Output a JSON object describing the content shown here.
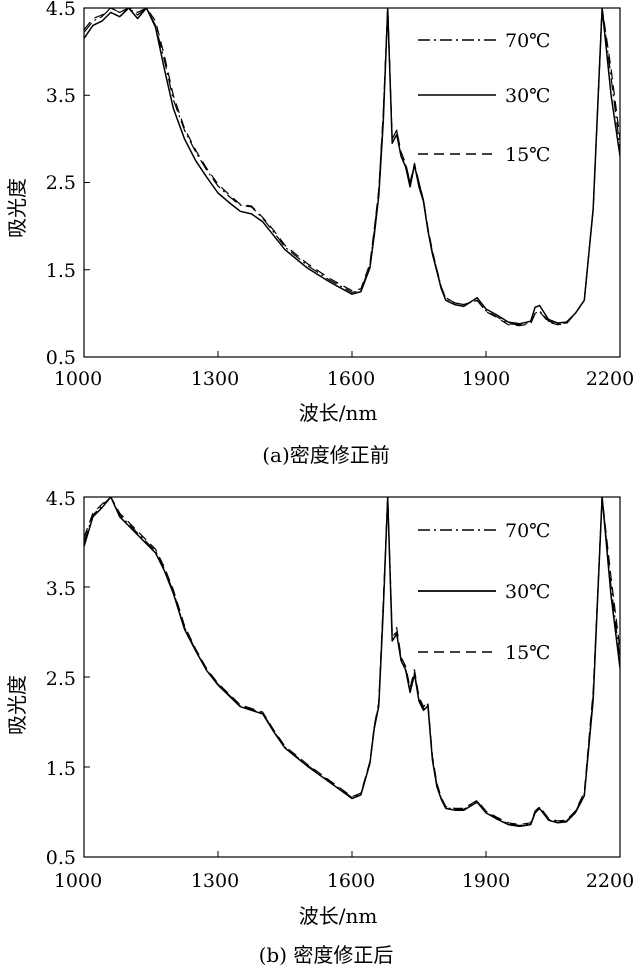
{
  "chart_data": [
    {
      "type": "line",
      "caption": "(a)密度修正前",
      "xlabel": "波长/nm",
      "ylabel": "吸光度",
      "xlim": [
        1000,
        2200
      ],
      "ylim": [
        0.5,
        4.5
      ],
      "xticks": [
        "1000",
        "1300",
        "1600",
        "1900",
        "2200"
      ],
      "yticks": [
        "0.5",
        "1.5",
        "2.5",
        "3.5",
        "4.5"
      ],
      "xticks_values": [
        1000,
        1300,
        1600,
        1900,
        2200
      ],
      "yticks_values": [
        0.5,
        1.5,
        2.5,
        3.5,
        4.5
      ],
      "legend_position": "top-right",
      "series": [
        {
          "name": "70℃",
          "style": "dashdot",
          "x": [
            1000,
            1020,
            1040,
            1060,
            1080,
            1100,
            1120,
            1140,
            1160,
            1180,
            1200,
            1225,
            1250,
            1275,
            1300,
            1325,
            1350,
            1375,
            1400,
            1425,
            1450,
            1500,
            1550,
            1600,
            1620,
            1640,
            1650,
            1660,
            1670,
            1680,
            1690,
            1700,
            1710,
            1720,
            1730,
            1740,
            1750,
            1760,
            1770,
            1780,
            1790,
            1800,
            1810,
            1830,
            1850,
            1880,
            1900,
            1925,
            1950,
            1975,
            2000,
            2010,
            2020,
            2040,
            2060,
            2080,
            2100,
            2120,
            2140,
            2160,
            2180,
            2200
          ],
          "y": [
            4.22,
            4.35,
            4.4,
            4.5,
            4.45,
            4.5,
            4.42,
            4.5,
            4.3,
            3.9,
            3.45,
            3.1,
            2.85,
            2.64,
            2.46,
            2.34,
            2.24,
            2.22,
            2.09,
            1.93,
            1.76,
            1.55,
            1.38,
            1.24,
            1.26,
            1.55,
            1.95,
            2.4,
            3.3,
            4.5,
            3.0,
            3.1,
            2.8,
            2.7,
            2.5,
            2.7,
            2.5,
            2.3,
            1.97,
            1.7,
            1.5,
            1.3,
            1.17,
            1.12,
            1.1,
            1.15,
            1.03,
            0.96,
            0.88,
            0.87,
            0.89,
            1.0,
            1.03,
            0.91,
            0.88,
            0.89,
            1.0,
            1.15,
            2.2,
            4.5,
            3.7,
            2.9
          ]
        },
        {
          "name": "30℃",
          "style": "solid",
          "x": [
            1000,
            1020,
            1040,
            1060,
            1080,
            1100,
            1120,
            1140,
            1160,
            1180,
            1200,
            1225,
            1250,
            1275,
            1300,
            1325,
            1350,
            1375,
            1400,
            1425,
            1450,
            1500,
            1550,
            1600,
            1620,
            1640,
            1650,
            1660,
            1670,
            1680,
            1690,
            1700,
            1710,
            1720,
            1730,
            1740,
            1750,
            1760,
            1770,
            1780,
            1790,
            1800,
            1810,
            1830,
            1850,
            1880,
            1900,
            1925,
            1950,
            1975,
            2000,
            2010,
            2020,
            2040,
            2060,
            2080,
            2100,
            2120,
            2140,
            2160,
            2180,
            2200
          ],
          "y": [
            4.15,
            4.3,
            4.35,
            4.45,
            4.4,
            4.5,
            4.38,
            4.5,
            4.28,
            3.8,
            3.35,
            3.0,
            2.75,
            2.56,
            2.38,
            2.27,
            2.17,
            2.14,
            2.05,
            1.89,
            1.73,
            1.52,
            1.36,
            1.22,
            1.25,
            1.52,
            1.9,
            2.35,
            3.2,
            4.5,
            2.95,
            3.05,
            2.8,
            2.68,
            2.45,
            2.7,
            2.45,
            2.28,
            1.95,
            1.68,
            1.48,
            1.28,
            1.15,
            1.1,
            1.08,
            1.18,
            1.05,
            0.98,
            0.9,
            0.88,
            0.91,
            1.07,
            1.09,
            0.93,
            0.89,
            0.9,
            1.0,
            1.15,
            2.2,
            4.5,
            3.5,
            2.8
          ]
        },
        {
          "name": "15℃",
          "style": "dashed",
          "x": [
            1000,
            1020,
            1040,
            1060,
            1080,
            1100,
            1120,
            1140,
            1160,
            1180,
            1200,
            1225,
            1250,
            1275,
            1300,
            1325,
            1350,
            1375,
            1400,
            1425,
            1450,
            1500,
            1550,
            1600,
            1620,
            1640,
            1650,
            1660,
            1670,
            1680,
            1690,
            1700,
            1710,
            1720,
            1730,
            1740,
            1750,
            1760,
            1770,
            1780,
            1790,
            1800,
            1810,
            1830,
            1850,
            1880,
            1900,
            1925,
            1950,
            1975,
            2000,
            2010,
            2020,
            2040,
            2060,
            2080,
            2100,
            2120,
            2140,
            2160,
            2180,
            2200
          ],
          "y": [
            4.25,
            4.38,
            4.42,
            4.5,
            4.45,
            4.5,
            4.45,
            4.5,
            4.35,
            3.95,
            3.5,
            3.12,
            2.87,
            2.66,
            2.48,
            2.36,
            2.25,
            2.23,
            2.1,
            1.95,
            1.78,
            1.57,
            1.4,
            1.26,
            1.28,
            1.57,
            1.97,
            2.42,
            3.3,
            4.5,
            3.0,
            3.1,
            2.85,
            2.72,
            2.5,
            2.72,
            2.5,
            2.3,
            1.98,
            1.72,
            1.5,
            1.3,
            1.18,
            1.12,
            1.1,
            1.15,
            1.02,
            0.95,
            0.87,
            0.86,
            0.88,
            1.0,
            1.02,
            0.9,
            0.87,
            0.88,
            1.0,
            1.15,
            2.2,
            4.5,
            3.8,
            3.0
          ]
        }
      ]
    },
    {
      "type": "line",
      "caption": "(b) 密度修正后",
      "xlabel": "波长/nm",
      "ylabel": "吸光度",
      "xlim": [
        1000,
        2200
      ],
      "ylim": [
        0.5,
        4.5
      ],
      "xticks": [
        "1000",
        "1300",
        "1600",
        "1900",
        "2200"
      ],
      "yticks": [
        "0.5",
        "1.5",
        "2.5",
        "3.5",
        "4.5"
      ],
      "xticks_values": [
        1000,
        1300,
        1600,
        1900,
        2200
      ],
      "yticks_values": [
        0.5,
        1.5,
        2.5,
        3.5,
        4.5
      ],
      "legend_position": "top-right",
      "series": [
        {
          "name": "70℃",
          "style": "dashdot",
          "x": [
            1000,
            1020,
            1040,
            1060,
            1080,
            1100,
            1120,
            1140,
            1160,
            1180,
            1200,
            1225,
            1250,
            1275,
            1300,
            1325,
            1350,
            1375,
            1400,
            1425,
            1450,
            1500,
            1550,
            1600,
            1620,
            1640,
            1650,
            1660,
            1670,
            1680,
            1690,
            1700,
            1710,
            1720,
            1730,
            1740,
            1750,
            1760,
            1770,
            1780,
            1790,
            1800,
            1810,
            1830,
            1850,
            1880,
            1900,
            1925,
            1950,
            1975,
            2000,
            2010,
            2020,
            2040,
            2060,
            2080,
            2100,
            2120,
            2140,
            2160,
            2180,
            2200
          ],
          "y": [
            4.0,
            4.3,
            4.4,
            4.5,
            4.3,
            4.2,
            4.1,
            4.0,
            3.9,
            3.7,
            3.45,
            3.05,
            2.8,
            2.58,
            2.42,
            2.3,
            2.18,
            2.14,
            2.1,
            1.9,
            1.72,
            1.52,
            1.34,
            1.16,
            1.2,
            1.55,
            1.95,
            2.2,
            3.3,
            4.5,
            2.95,
            3.0,
            2.7,
            2.6,
            2.35,
            2.55,
            2.25,
            2.15,
            2.2,
            1.6,
            1.3,
            1.15,
            1.05,
            1.03,
            1.03,
            1.12,
            1.0,
            0.93,
            0.87,
            0.85,
            0.87,
            1.0,
            1.05,
            0.92,
            0.89,
            0.9,
            1.0,
            1.2,
            2.3,
            4.5,
            3.5,
            2.7
          ]
        },
        {
          "name": "30℃",
          "style": "solid",
          "x": [
            1000,
            1020,
            1040,
            1060,
            1080,
            1100,
            1120,
            1140,
            1160,
            1180,
            1200,
            1225,
            1250,
            1275,
            1300,
            1325,
            1350,
            1375,
            1400,
            1425,
            1450,
            1500,
            1550,
            1600,
            1620,
            1640,
            1650,
            1660,
            1670,
            1680,
            1690,
            1700,
            1710,
            1720,
            1730,
            1740,
            1750,
            1760,
            1770,
            1780,
            1790,
            1800,
            1810,
            1830,
            1850,
            1880,
            1900,
            1925,
            1950,
            1975,
            2000,
            2010,
            2020,
            2040,
            2060,
            2080,
            2100,
            2120,
            2140,
            2160,
            2180,
            2200
          ],
          "y": [
            3.95,
            4.28,
            4.38,
            4.5,
            4.28,
            4.18,
            4.08,
            3.98,
            3.88,
            3.68,
            3.43,
            3.03,
            2.79,
            2.57,
            2.41,
            2.29,
            2.17,
            2.13,
            2.09,
            1.89,
            1.71,
            1.51,
            1.33,
            1.15,
            1.19,
            1.54,
            1.93,
            2.18,
            3.25,
            4.5,
            2.9,
            2.98,
            2.68,
            2.58,
            2.33,
            2.53,
            2.23,
            2.13,
            2.18,
            1.58,
            1.28,
            1.14,
            1.04,
            1.02,
            1.02,
            1.11,
            0.99,
            0.92,
            0.86,
            0.84,
            0.86,
            0.99,
            1.04,
            0.91,
            0.88,
            0.89,
            0.99,
            1.18,
            2.25,
            4.5,
            3.4,
            2.6
          ]
        },
        {
          "name": "15℃",
          "style": "dashed",
          "x": [
            1000,
            1020,
            1040,
            1060,
            1080,
            1100,
            1120,
            1140,
            1160,
            1180,
            1200,
            1225,
            1250,
            1275,
            1300,
            1325,
            1350,
            1375,
            1400,
            1425,
            1450,
            1500,
            1550,
            1600,
            1620,
            1640,
            1650,
            1660,
            1670,
            1680,
            1690,
            1700,
            1710,
            1720,
            1730,
            1740,
            1750,
            1760,
            1770,
            1780,
            1790,
            1800,
            1810,
            1830,
            1850,
            1880,
            1900,
            1925,
            1950,
            1975,
            2000,
            2010,
            2020,
            2040,
            2060,
            2080,
            2100,
            2120,
            2140,
            2160,
            2180,
            2200
          ],
          "y": [
            4.05,
            4.32,
            4.42,
            4.5,
            4.32,
            4.22,
            4.12,
            4.02,
            3.92,
            3.72,
            3.47,
            3.07,
            2.81,
            2.59,
            2.43,
            2.31,
            2.19,
            2.15,
            2.11,
            1.91,
            1.73,
            1.53,
            1.35,
            1.17,
            1.21,
            1.56,
            1.96,
            2.22,
            3.35,
            4.5,
            3.0,
            3.05,
            2.72,
            2.62,
            2.38,
            2.58,
            2.28,
            2.17,
            2.22,
            1.62,
            1.32,
            1.16,
            1.06,
            1.04,
            1.04,
            1.13,
            1.01,
            0.94,
            0.88,
            0.86,
            0.88,
            1.01,
            1.06,
            0.93,
            0.9,
            0.91,
            1.01,
            1.22,
            2.35,
            4.5,
            3.6,
            2.8
          ]
        }
      ]
    }
  ]
}
